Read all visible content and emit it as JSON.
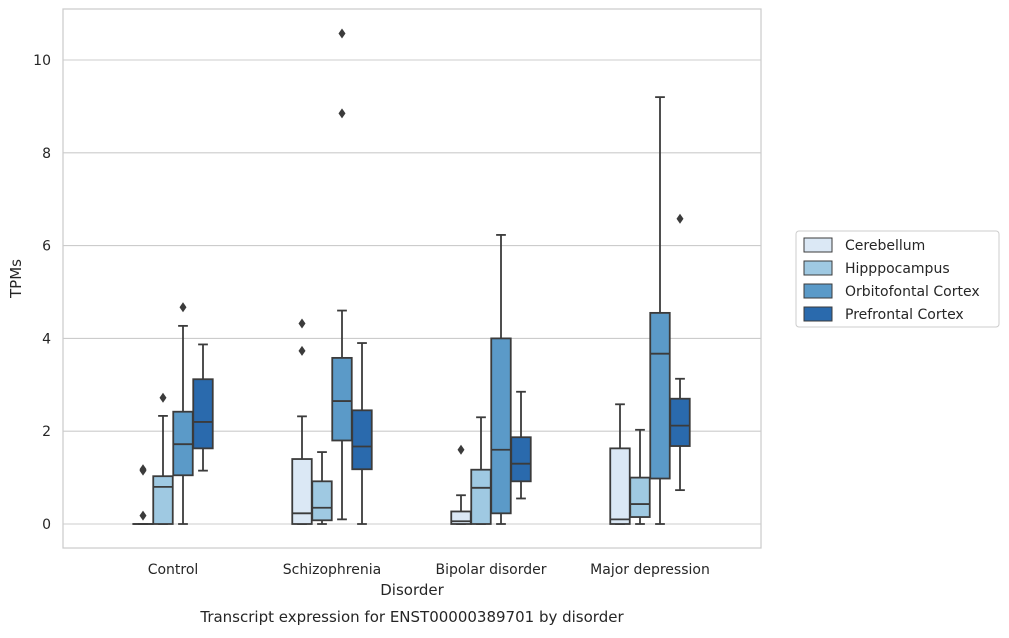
{
  "chart_data": {
    "type": "boxplot",
    "title": "",
    "caption": "Transcript expression for ENST00000389701 by disorder",
    "xlabel": "Disorder",
    "ylabel": "TPMs",
    "ylim": [
      -0.5,
      11.1
    ],
    "yticks": [
      0,
      2,
      4,
      6,
      8,
      10
    ],
    "grid": "horizontal",
    "legend_position": "right",
    "categories": [
      "Control",
      "Schizophrenia",
      "Bipolar disorder",
      "Major depression"
    ],
    "series": [
      {
        "name": "Cerebellum",
        "color": "#dbe8f5",
        "boxes": [
          {
            "whislo": 0.0,
            "q1": 0.0,
            "med": 0.0,
            "q3": 0.0,
            "whishi": 0.0,
            "fliers": [
              0.18,
              1.15,
              1.18
            ]
          },
          {
            "whislo": 0.0,
            "q1": 0.0,
            "med": 0.23,
            "q3": 1.4,
            "whishi": 2.32,
            "fliers": [
              3.73,
              4.32
            ]
          },
          {
            "whislo": 0.0,
            "q1": 0.0,
            "med": 0.06,
            "q3": 0.27,
            "whishi": 0.62,
            "fliers": [
              1.6
            ]
          },
          {
            "whislo": 0.0,
            "q1": 0.0,
            "med": 0.1,
            "q3": 1.63,
            "whishi": 2.58,
            "fliers": []
          }
        ]
      },
      {
        "name": "Hipppocampus",
        "color": "#9fc9e2",
        "boxes": [
          {
            "whislo": 0.0,
            "q1": 0.0,
            "med": 0.8,
            "q3": 1.03,
            "whishi": 2.33,
            "fliers": [
              2.72
            ]
          },
          {
            "whislo": 0.0,
            "q1": 0.08,
            "med": 0.35,
            "q3": 0.92,
            "whishi": 1.55,
            "fliers": []
          },
          {
            "whislo": 0.0,
            "q1": 0.0,
            "med": 0.78,
            "q3": 1.17,
            "whishi": 2.3,
            "fliers": []
          },
          {
            "whislo": 0.0,
            "q1": 0.15,
            "med": 0.43,
            "q3": 1.0,
            "whishi": 2.03,
            "fliers": []
          }
        ]
      },
      {
        "name": "Orbitofontal Cortex",
        "color": "#5b9ac8",
        "boxes": [
          {
            "whislo": 0.0,
            "q1": 1.05,
            "med": 1.72,
            "q3": 2.42,
            "whishi": 4.27,
            "fliers": [
              4.67
            ]
          },
          {
            "whislo": 0.1,
            "q1": 1.8,
            "med": 2.65,
            "q3": 3.58,
            "whishi": 4.6,
            "fliers": [
              8.85,
              10.57
            ]
          },
          {
            "whislo": 0.0,
            "q1": 0.23,
            "med": 1.6,
            "q3": 4.0,
            "whishi": 6.23,
            "fliers": []
          },
          {
            "whislo": 0.0,
            "q1": 0.98,
            "med": 3.67,
            "q3": 4.55,
            "whishi": 9.2,
            "fliers": []
          }
        ]
      },
      {
        "name": "Prefrontal Cortex",
        "color": "#2a6aad",
        "boxes": [
          {
            "whislo": 1.15,
            "q1": 1.63,
            "med": 2.2,
            "q3": 3.12,
            "whishi": 3.87,
            "fliers": []
          },
          {
            "whislo": 0.0,
            "q1": 1.18,
            "med": 1.67,
            "q3": 2.45,
            "whishi": 3.9,
            "fliers": []
          },
          {
            "whislo": 0.55,
            "q1": 0.92,
            "med": 1.3,
            "q3": 1.87,
            "whishi": 2.85,
            "fliers": []
          },
          {
            "whislo": 0.73,
            "q1": 1.68,
            "med": 2.12,
            "q3": 2.7,
            "whishi": 3.13,
            "fliers": [
              6.58
            ]
          }
        ]
      }
    ]
  }
}
